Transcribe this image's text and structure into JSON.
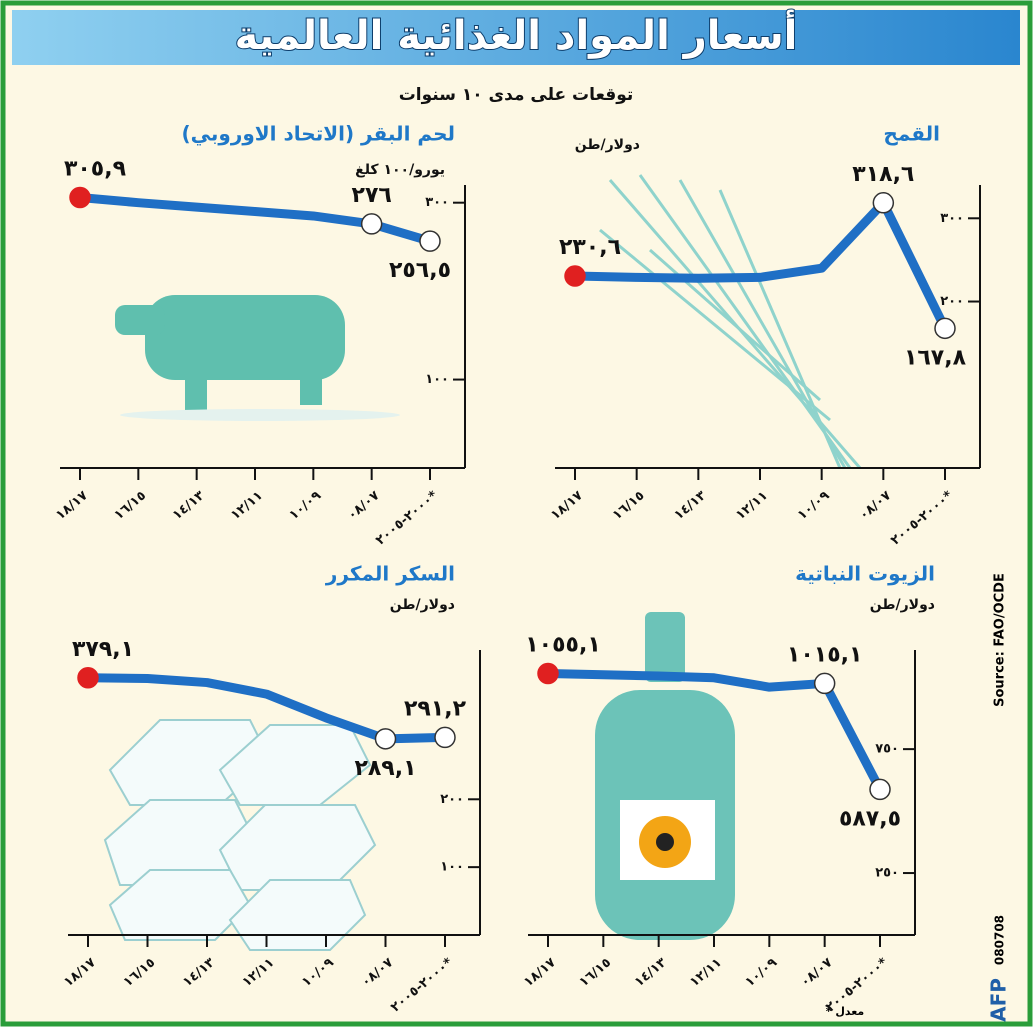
{
  "title": "أسعار المواد الغذائية العالمية",
  "subtitle": "توقعات على مدى ١٠ سنوات",
  "source": "Source: FAO/OCDE",
  "agency": "AFP",
  "code": "080708",
  "footnote": "* معدل",
  "chart_data": [
    {
      "type": "line",
      "title": "القمح",
      "unit": "دولار/طن",
      "categories": [
        "١٨/١٧",
        "١٦/١٥",
        "١٤/١٣",
        "١٢/١١",
        "١٠/٠٩",
        "٠٨/٠٧",
        "٢٠٠٠-٢٠٠٥*"
      ],
      "values": [
        230.6,
        229,
        228,
        229,
        240,
        318.6,
        167.8
      ],
      "value_labels": [
        "٢٣٠,٦",
        null,
        null,
        null,
        null,
        "٣١٨,٦",
        "١٦٧,٨"
      ],
      "color": "#1f6fc5",
      "ylim": [
        0,
        340
      ],
      "yticks": [
        {
          "value": 300,
          "label": "٣٠٠"
        },
        {
          "value": 200,
          "label": "٢٠٠"
        }
      ]
    },
    {
      "type": "line",
      "title": "لحم البقر (الاتحاد الاوروبي)",
      "unit": "يورو/١٠٠ كلغ",
      "categories": [
        "١٨/١٧",
        "١٦/١٥",
        "١٤/١٣",
        "١٢/١١",
        "١٠/٠٩",
        "٠٨/٠٧",
        "٢٠٠٠-٢٠٠٥*"
      ],
      "values": [
        305.9,
        300,
        295,
        290,
        285,
        276,
        256.5
      ],
      "value_labels": [
        "٣٠٥,٩",
        null,
        null,
        null,
        null,
        "٢٧٦",
        "٢٥٦,٥"
      ],
      "color": "#1f6fc5",
      "ylim": [
        0,
        320
      ],
      "yticks": [
        {
          "value": 300,
          "label": "٣٠٠"
        },
        {
          "value": 100,
          "label": "١٠٠"
        }
      ]
    },
    {
      "type": "line",
      "title": "الزيوت النباتية",
      "unit": "دولار/طن",
      "categories": [
        "١٨/١٧",
        "١٦/١٥",
        "١٤/١٣",
        "١٢/١١",
        "١٠/٠٩",
        "٠٨/٠٧",
        "٢٠٠٠-٢٠٠٥*"
      ],
      "values": [
        1055.1,
        1050,
        1045,
        1038,
        1000,
        1015.1,
        587.5
      ],
      "value_labels": [
        "١٠٥٥,١",
        null,
        null,
        null,
        null,
        "١٠١٥,١",
        "٥٨٧,٥"
      ],
      "color": "#1f6fc5",
      "ylim": [
        0,
        1150
      ],
      "yticks": [
        {
          "value": 750,
          "label": "٧٥٠"
        },
        {
          "value": 250,
          "label": "٢٥٠"
        }
      ]
    },
    {
      "type": "line",
      "title": "السكر المكرر",
      "unit": "دولار/طن",
      "categories": [
        "١٨/١٧",
        "١٦/١٥",
        "١٤/١٣",
        "١٢/١١",
        "١٠/٠٩",
        "٠٨/٠٧",
        "٢٠٠٠-٢٠٠٥*"
      ],
      "values": [
        379.1,
        378,
        372,
        355,
        320,
        289.1,
        291.2
      ],
      "value_labels": [
        "٣٧٩,١",
        null,
        null,
        null,
        null,
        "٢٨٩,١",
        "٢٩١,٢"
      ],
      "color": "#1f6fc5",
      "ylim": [
        0,
        420
      ],
      "yticks": [
        {
          "value": 200,
          "label": "٢٠٠"
        },
        {
          "value": 100,
          "label": "١٠٠"
        }
      ]
    }
  ]
}
